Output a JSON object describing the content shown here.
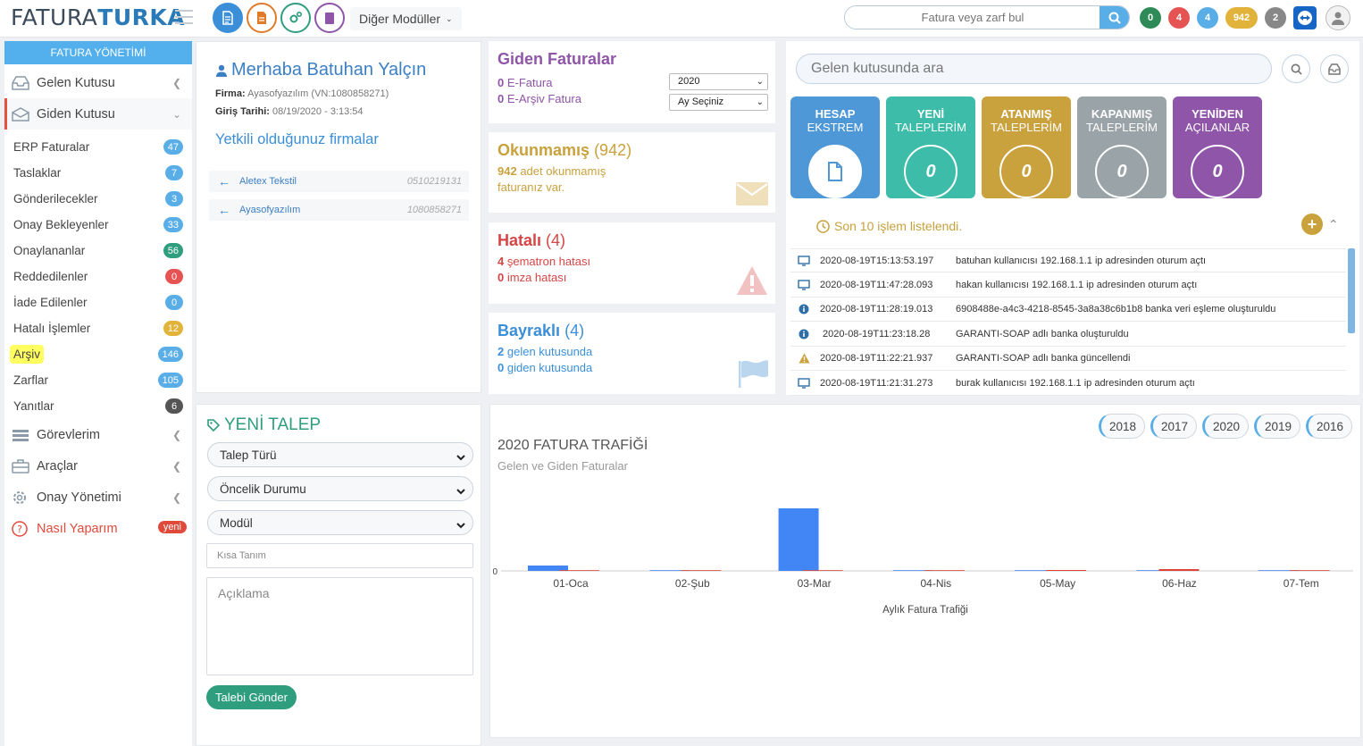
{
  "header": {
    "logo_part1": "FATURA",
    "logo_part2": "TURKA",
    "other_modules": "Diğer Modüller",
    "search_placeholder": "Fatura veya zarf bul",
    "badges": [
      {
        "value": "0",
        "color": "#2e8b57"
      },
      {
        "value": "4",
        "color": "#e55353"
      },
      {
        "value": "4",
        "color": "#5aaee8"
      },
      {
        "value": "942",
        "color": "#e2b33a"
      },
      {
        "value": "2",
        "color": "#888888"
      }
    ]
  },
  "sidebar": {
    "title": "FATURA YÖNETİMİ",
    "gelen": "Gelen Kutusu",
    "giden": "Giden Kutusu",
    "items": [
      {
        "label": "ERP Faturalar",
        "count": "47",
        "color": "#5aaee8"
      },
      {
        "label": "Taslaklar",
        "count": "7",
        "color": "#5aaee8"
      },
      {
        "label": "Gönderilecekler",
        "count": "3",
        "color": "#5aaee8"
      },
      {
        "label": "Onay Bekleyenler",
        "count": "33",
        "color": "#5aaee8"
      },
      {
        "label": "Onaylananlar",
        "count": "56",
        "color": "#2f9e7f"
      },
      {
        "label": "Reddedilenler",
        "count": "0",
        "color": "#e55353"
      },
      {
        "label": "İade Edilenler",
        "count": "0",
        "color": "#5aaee8"
      },
      {
        "label": "Hatalı İşlemler",
        "count": "12",
        "color": "#e2b33a"
      },
      {
        "label": "Arşiv",
        "count": "146",
        "color": "#5aaee8"
      },
      {
        "label": "Zarflar",
        "count": "105",
        "color": "#5aaee8"
      },
      {
        "label": "Yanıtlar",
        "count": "6",
        "color": "#555555"
      }
    ],
    "gorevlerim": "Görevlerim",
    "araclar": "Araçlar",
    "onay": "Onay Yönetimi",
    "nasil": "Nasıl Yaparım",
    "nasil_badge": "yeni"
  },
  "greeting": {
    "title": "Merhaba Batuhan Yalçın",
    "firma_label": "Firma:",
    "firma_value": "Ayasofyazılım (VN:1080858271)",
    "giris_label": "Giriş Tarihi:",
    "giris_value": "08/19/2020 - 3:13:54",
    "yetkili": "Yetkili olduğunuz firmalar",
    "firms": [
      {
        "name": "Aletex Tekstil",
        "vn": "0510219131"
      },
      {
        "name": "Ayasofyazılım",
        "vn": "1080858271"
      }
    ]
  },
  "giden": {
    "title": "Giden Faturalar",
    "efatura_count": "0",
    "efatura_label": "E-Fatura",
    "earsiv_count": "0",
    "earsiv_label": "E-Arşiv Fatura",
    "year": "2020",
    "month": "Ay Seçiniz"
  },
  "okunmamis": {
    "title": "Okunmamış",
    "count": "(942)",
    "num": "942",
    "text1": "adet okunmamış",
    "text2": "faturanız var."
  },
  "hatali": {
    "title": "Hatalı",
    "count": "(4)",
    "n1": "4",
    "l1": "şematron hatası",
    "n2": "0",
    "l2": "imza hatası"
  },
  "bayrakli": {
    "title": "Bayraklı",
    "count": "(4)",
    "n1": "2",
    "l1": "gelen kutusunda",
    "n2": "0",
    "l2": "giden kutusunda"
  },
  "inbox": {
    "search_placeholder": "Gelen kutusunda ara",
    "tiles": [
      {
        "l1": "HESAP",
        "l2": "EKSTREM",
        "value": "",
        "color": "#4f98d8"
      },
      {
        "l1": "YENİ",
        "l2": "TALEPLERİM",
        "value": "0",
        "color": "#3dbca9"
      },
      {
        "l1": "ATANMIŞ",
        "l2": "TALEPLERİM",
        "value": "0",
        "color": "#c9a13d"
      },
      {
        "l1": "KAPANMIŞ",
        "l2": "TALEPLERİM",
        "value": "0",
        "color": "#9aa3a8"
      },
      {
        "l1": "YENİDEN",
        "l2": "AÇILANLAR",
        "value": "0",
        "color": "#8f55a8"
      }
    ],
    "log_title": "Son 10 işlem listelendi.",
    "logs": [
      {
        "icon": "monitor-icon",
        "ts": "2020-08-19T15:13:53.197",
        "text": "batuhan kullanıcısı 192.168.1.1 ip adresinden oturum açtı"
      },
      {
        "icon": "monitor-icon",
        "ts": "2020-08-19T11:47:28.093",
        "text": "hakan kullanıcısı 192.168.1.1 ip adresinden oturum açtı"
      },
      {
        "icon": "info-icon",
        "ts": "2020-08-19T11:28:19.013",
        "text": "6908488e-a4c3-4218-8545-3a8a38c6b1b8 banka veri eşleme oluşturuldu"
      },
      {
        "icon": "info-icon",
        "ts": " 2020-08-19T11:23:18.28",
        "text": "GARANTI-SOAP adlı banka oluşturuldu"
      },
      {
        "icon": "warning-icon",
        "ts": "2020-08-19T11:22:21.937",
        "text": "GARANTI-SOAP adlı banka güncellendi"
      },
      {
        "icon": "monitor-icon",
        "ts": "2020-08-19T11:21:31.273",
        "text": "burak kullanıcısı 192.168.1.1 ip adresinden oturum açtı"
      }
    ]
  },
  "talep": {
    "title": "YENİ TALEP",
    "tur": "Talep Türü",
    "oncelik": "Öncelik Durumu",
    "modul": "Modül",
    "kisa_placeholder": "Kısa Tanım",
    "aciklama_placeholder": "Açıklama",
    "submit": "Talebi Gönder"
  },
  "chart_data": {
    "type": "bar",
    "title": "2020 FATURA TRAFİĞİ",
    "subtitle": "Gelen ve Giden Faturalar",
    "xlabel": "Aylık Fatura Trafiği",
    "ylabel": "",
    "years": [
      "2018",
      "2017",
      "2020",
      "2019",
      "2016"
    ],
    "y_tick": "0",
    "categories": [
      "01-Oca",
      "02-Şub",
      "03-Mar",
      "04-Nis",
      "05-May",
      "06-Haz",
      "07-Tem"
    ],
    "series": [
      {
        "values": [
          6,
          0,
          70,
          0,
          0,
          0,
          0
        ],
        "color": "#4285f4"
      },
      {
        "values": [
          0,
          0,
          0,
          0,
          1,
          2,
          0
        ],
        "color": "#db4437"
      }
    ],
    "ylim": [
      0,
      70
    ]
  }
}
